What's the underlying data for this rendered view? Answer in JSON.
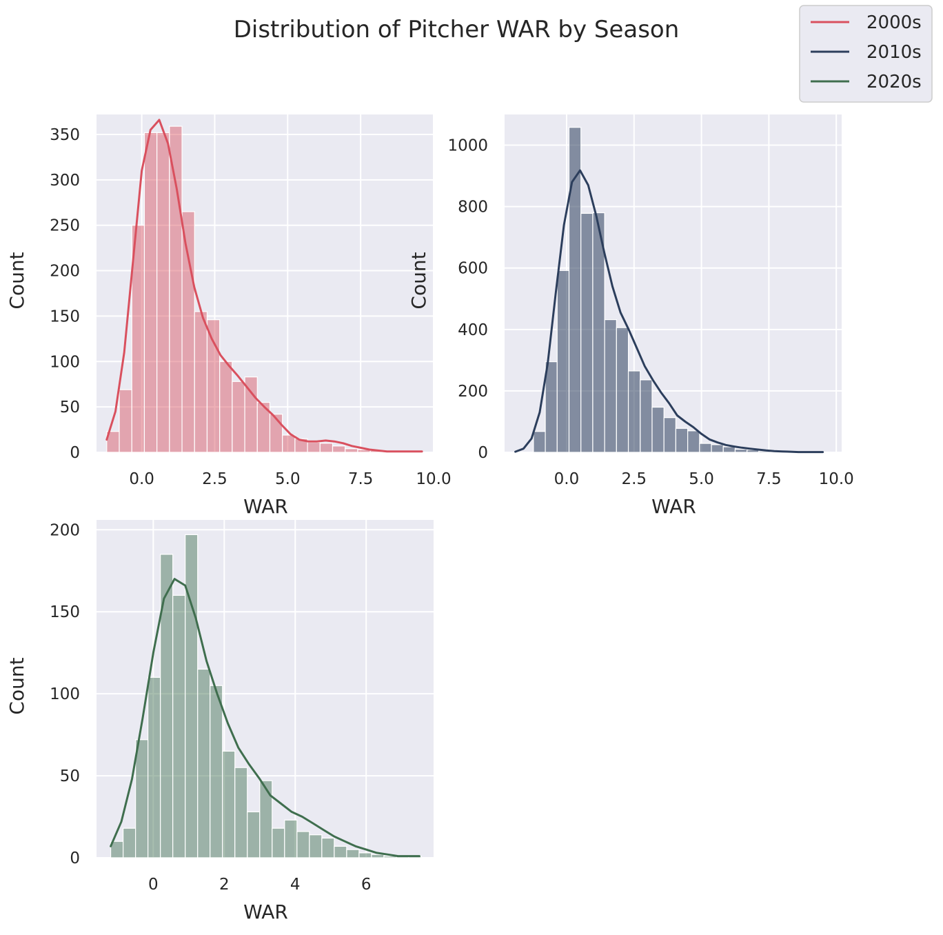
{
  "title": "Distribution of Pitcher WAR by Season",
  "legend": {
    "placement": "top-right",
    "entries": [
      {
        "label": "2000s",
        "color": "#d9505e"
      },
      {
        "label": "2010s",
        "color": "#2c3e5c"
      },
      {
        "label": "2020s",
        "color": "#3f6e4e"
      }
    ]
  },
  "style": {
    "axes_bg": "#eaeaf2",
    "grid": true,
    "grid_color": "#ffffff"
  },
  "chart_data": [
    {
      "type": "bar",
      "series_name": "2000s",
      "color": "#d9505e",
      "bar_alpha": 0.45,
      "xlabel": "WAR",
      "ylabel": "Count",
      "xlim": [
        -1.55,
        10.0
      ],
      "ylim": [
        0,
        372
      ],
      "xticks": [
        0.0,
        2.5,
        5.0,
        7.5,
        10.0
      ],
      "xtick_labels": [
        "0.0",
        "2.5",
        "5.0",
        "7.5",
        "10.0"
      ],
      "yticks": [
        0,
        50,
        100,
        150,
        200,
        250,
        300,
        350
      ],
      "bin_edges": [
        -1.2,
        -0.77,
        -0.34,
        0.09,
        0.52,
        0.95,
        1.38,
        1.81,
        2.24,
        2.67,
        3.1,
        3.53,
        3.96,
        4.39,
        4.82,
        5.25,
        5.68,
        6.11,
        6.54,
        6.97,
        7.4,
        7.83,
        8.26,
        8.69,
        9.12,
        9.55
      ],
      "counts": [
        23,
        69,
        250,
        352,
        352,
        359,
        265,
        155,
        146,
        100,
        78,
        83,
        55,
        42,
        19,
        15,
        11,
        10,
        7,
        4,
        3,
        2,
        1,
        1,
        1
      ],
      "kde": {
        "x": [
          -1.2,
          -0.9,
          -0.6,
          -0.3,
          0.0,
          0.3,
          0.6,
          0.9,
          1.2,
          1.5,
          1.8,
          2.1,
          2.4,
          2.7,
          3.0,
          3.3,
          3.6,
          3.9,
          4.2,
          4.5,
          4.8,
          5.1,
          5.4,
          5.7,
          6.0,
          6.3,
          6.6,
          6.9,
          7.2,
          7.5,
          7.8,
          8.1,
          8.4,
          8.7,
          9.0,
          9.3,
          9.6
        ],
        "y": [
          14,
          45,
          110,
          210,
          310,
          355,
          366,
          340,
          290,
          230,
          182,
          148,
          125,
          107,
          95,
          84,
          72,
          60,
          50,
          41,
          30,
          20,
          14,
          12,
          12,
          13,
          12,
          10,
          7,
          5,
          3,
          2,
          1,
          1,
          1,
          1,
          1
        ]
      }
    },
    {
      "type": "bar",
      "series_name": "2010s",
      "color": "#2c3e5c",
      "bar_alpha": 0.55,
      "xlabel": "WAR",
      "ylabel": "Count",
      "xlim": [
        -2.3,
        10.2
      ],
      "ylim": [
        0,
        1100
      ],
      "xticks": [
        0.0,
        2.5,
        5.0,
        7.5,
        10.0
      ],
      "xtick_labels": [
        "0.0",
        "2.5",
        "5.0",
        "7.5",
        "10.0"
      ],
      "yticks": [
        0,
        200,
        400,
        600,
        800,
        1000
      ],
      "bin_edges": [
        -1.23,
        -0.79,
        -0.35,
        0.09,
        0.53,
        0.97,
        1.41,
        1.85,
        2.29,
        2.73,
        3.17,
        3.61,
        4.05,
        4.49,
        4.93,
        5.37,
        5.81,
        6.25,
        6.69,
        7.13,
        7.57,
        8.01,
        8.45,
        8.89,
        9.33,
        9.77
      ],
      "counts": [
        68,
        295,
        592,
        1058,
        778,
        780,
        432,
        406,
        265,
        236,
        147,
        113,
        78,
        70,
        29,
        25,
        18,
        10,
        8,
        4,
        3,
        2,
        1,
        1,
        1
      ],
      "kde": {
        "x": [
          -1.9,
          -1.6,
          -1.3,
          -1.0,
          -0.7,
          -0.4,
          -0.1,
          0.2,
          0.5,
          0.8,
          1.1,
          1.4,
          1.7,
          2.0,
          2.3,
          2.6,
          2.9,
          3.2,
          3.5,
          3.8,
          4.1,
          4.4,
          4.7,
          5.0,
          5.3,
          5.6,
          5.9,
          6.2,
          6.5,
          6.8,
          7.1,
          7.4,
          7.7,
          8.0,
          8.3,
          8.6,
          8.9,
          9.2,
          9.5
        ],
        "y": [
          2,
          12,
          45,
          130,
          290,
          520,
          740,
          880,
          918,
          870,
          770,
          650,
          540,
          455,
          400,
          340,
          280,
          235,
          195,
          160,
          120,
          100,
          82,
          60,
          42,
          32,
          24,
          19,
          15,
          12,
          9,
          6,
          4,
          3,
          2,
          1,
          1,
          1,
          1
        ]
      }
    },
    {
      "type": "bar",
      "series_name": "2020s",
      "color": "#3f6e4e",
      "bar_alpha": 0.45,
      "xlabel": "WAR",
      "ylabel": "Count",
      "xlim": [
        -1.6,
        7.9
      ],
      "ylim": [
        0,
        206
      ],
      "xticks": [
        0,
        2,
        4,
        6
      ],
      "xtick_labels": [
        "0",
        "2",
        "4",
        "6"
      ],
      "yticks": [
        0,
        50,
        100,
        150,
        200
      ],
      "bin_edges": [
        -1.2,
        -0.85,
        -0.5,
        -0.15,
        0.2,
        0.55,
        0.9,
        1.25,
        1.6,
        1.95,
        2.3,
        2.65,
        3.0,
        3.35,
        3.7,
        4.05,
        4.4,
        4.75,
        5.1,
        5.45,
        5.8,
        6.15,
        6.5,
        6.85,
        7.2,
        7.55
      ],
      "counts": [
        10,
        18,
        72,
        110,
        185,
        160,
        197,
        115,
        105,
        65,
        55,
        28,
        47,
        18,
        23,
        16,
        14,
        12,
        7,
        5,
        3,
        2,
        1,
        1,
        1
      ],
      "kde": {
        "x": [
          -1.2,
          -0.9,
          -0.6,
          -0.3,
          0.0,
          0.3,
          0.6,
          0.9,
          1.2,
          1.5,
          1.8,
          2.1,
          2.4,
          2.7,
          3.0,
          3.3,
          3.6,
          3.9,
          4.2,
          4.5,
          4.8,
          5.1,
          5.4,
          5.7,
          6.0,
          6.3,
          6.6,
          6.9,
          7.2,
          7.5
        ],
        "y": [
          7,
          22,
          48,
          85,
          125,
          158,
          170,
          166,
          146,
          120,
          100,
          82,
          67,
          57,
          48,
          38,
          33,
          28,
          25,
          21,
          17,
          13,
          10,
          7,
          5,
          3,
          2,
          1,
          1,
          1
        ]
      }
    }
  ]
}
